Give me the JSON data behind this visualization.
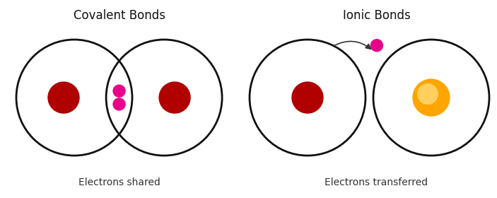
{
  "bg_color": "#ffffff",
  "title_covalent": "Covalent Bonds",
  "title_ionic": "Ionic Bonds",
  "label_covalent": "Electrons shared",
  "label_ionic": "Electrons transferred",
  "title_fontsize": 12,
  "label_fontsize": 10,
  "circle_lw": 2.0,
  "circle_color": "#111111",
  "cov_nucleus_color": "#b00000",
  "cov_electron_color": "#e8008a",
  "ion_nucleus1_color": "#b00000",
  "ion_nucleus2_color_outer": "#FFA500",
  "ion_nucleus2_color_inner": "#FFD060",
  "ion_electron_color": "#e8008a",
  "fig_width": 7.03,
  "fig_height": 2.8,
  "dpi": 100
}
